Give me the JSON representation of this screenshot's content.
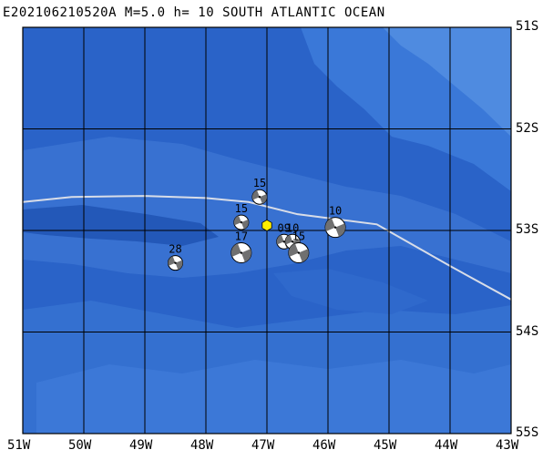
{
  "header": {
    "title": "E202106210520A  M=5.0  h= 10 SOUTH ATLANTIC OCEAN"
  },
  "axes": {
    "lon_labels": [
      "51W",
      "50W",
      "49W",
      "48W",
      "47W",
      "46W",
      "45W",
      "44W",
      "43W"
    ],
    "lat_labels": [
      "51S",
      "52S",
      "53S",
      "54S",
      "55S"
    ],
    "lon_min": -51,
    "lon_max": -43,
    "lat_max": -51,
    "lat_min": -55,
    "grid": true
  },
  "colors": {
    "ocean_base": "#2a63c8",
    "ocean_deep": "#2358b8",
    "ocean_shallow": "#3a78d8",
    "ocean_light": "#4f8be0",
    "grid": "#000000",
    "plate_boundary": "#d8dde8",
    "epicenter": "#ffee00"
  },
  "epicenter": {
    "lon": -47.0,
    "lat": -52.95,
    "icon": "yellow-hexagon-icon"
  },
  "plate_boundary": [
    [
      -51.0,
      -52.72
    ],
    [
      -50.2,
      -52.67
    ],
    [
      -49.0,
      -52.66
    ],
    [
      -48.0,
      -52.68
    ],
    [
      -47.3,
      -52.72
    ],
    [
      -46.5,
      -52.84
    ],
    [
      -45.2,
      -52.94
    ],
    [
      -44.0,
      -53.35
    ],
    [
      -43.0,
      -53.68
    ]
  ],
  "mechanisms": [
    {
      "label": "15",
      "lon": -47.12,
      "lat": -52.67,
      "size": "small"
    },
    {
      "label": "15",
      "lon": -47.42,
      "lat": -52.92,
      "size": "small"
    },
    {
      "label": "17",
      "lon": -47.42,
      "lat": -53.22,
      "size": "medium"
    },
    {
      "label": "28",
      "lon": -48.5,
      "lat": -53.32,
      "size": "small"
    },
    {
      "label": "09",
      "lon": -46.72,
      "lat": -53.11,
      "size": "small"
    },
    {
      "label": "10",
      "lon": -46.58,
      "lat": -53.11,
      "size": "small"
    },
    {
      "label": "15",
      "lon": -46.48,
      "lat": -53.22,
      "size": "medium"
    },
    {
      "label": "10",
      "lon": -45.88,
      "lat": -52.97,
      "size": "medium"
    }
  ]
}
